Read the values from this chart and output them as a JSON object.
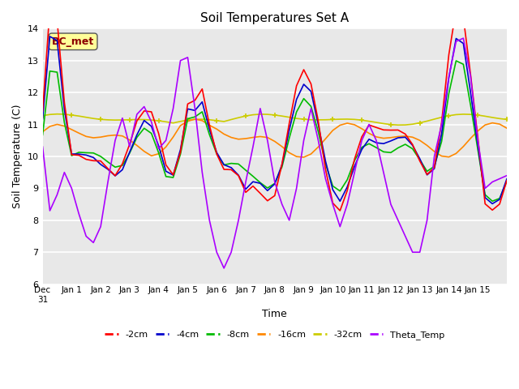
{
  "title": "Soil Temperatures Set A",
  "xlabel": "Time",
  "ylabel": "Soil Temperature (C)",
  "ylim": [
    6.0,
    14.0
  ],
  "yticks": [
    6.0,
    7.0,
    8.0,
    9.0,
    10.0,
    11.0,
    12.0,
    13.0,
    14.0
  ],
  "annotation_text": "BC_met",
  "annotation_color": "#8B0000",
  "annotation_bg": "#ffff99",
  "series_colors": {
    "-2cm": "#ff0000",
    "-4cm": "#0000cc",
    "-8cm": "#00bb00",
    "-16cm": "#ff8800",
    "-32cm": "#cccc00",
    "Theta_Temp": "#aa00ff"
  },
  "background_color": "#e8e8e8",
  "grid_color": "#ffffff",
  "fig_bg": "#ffffff"
}
